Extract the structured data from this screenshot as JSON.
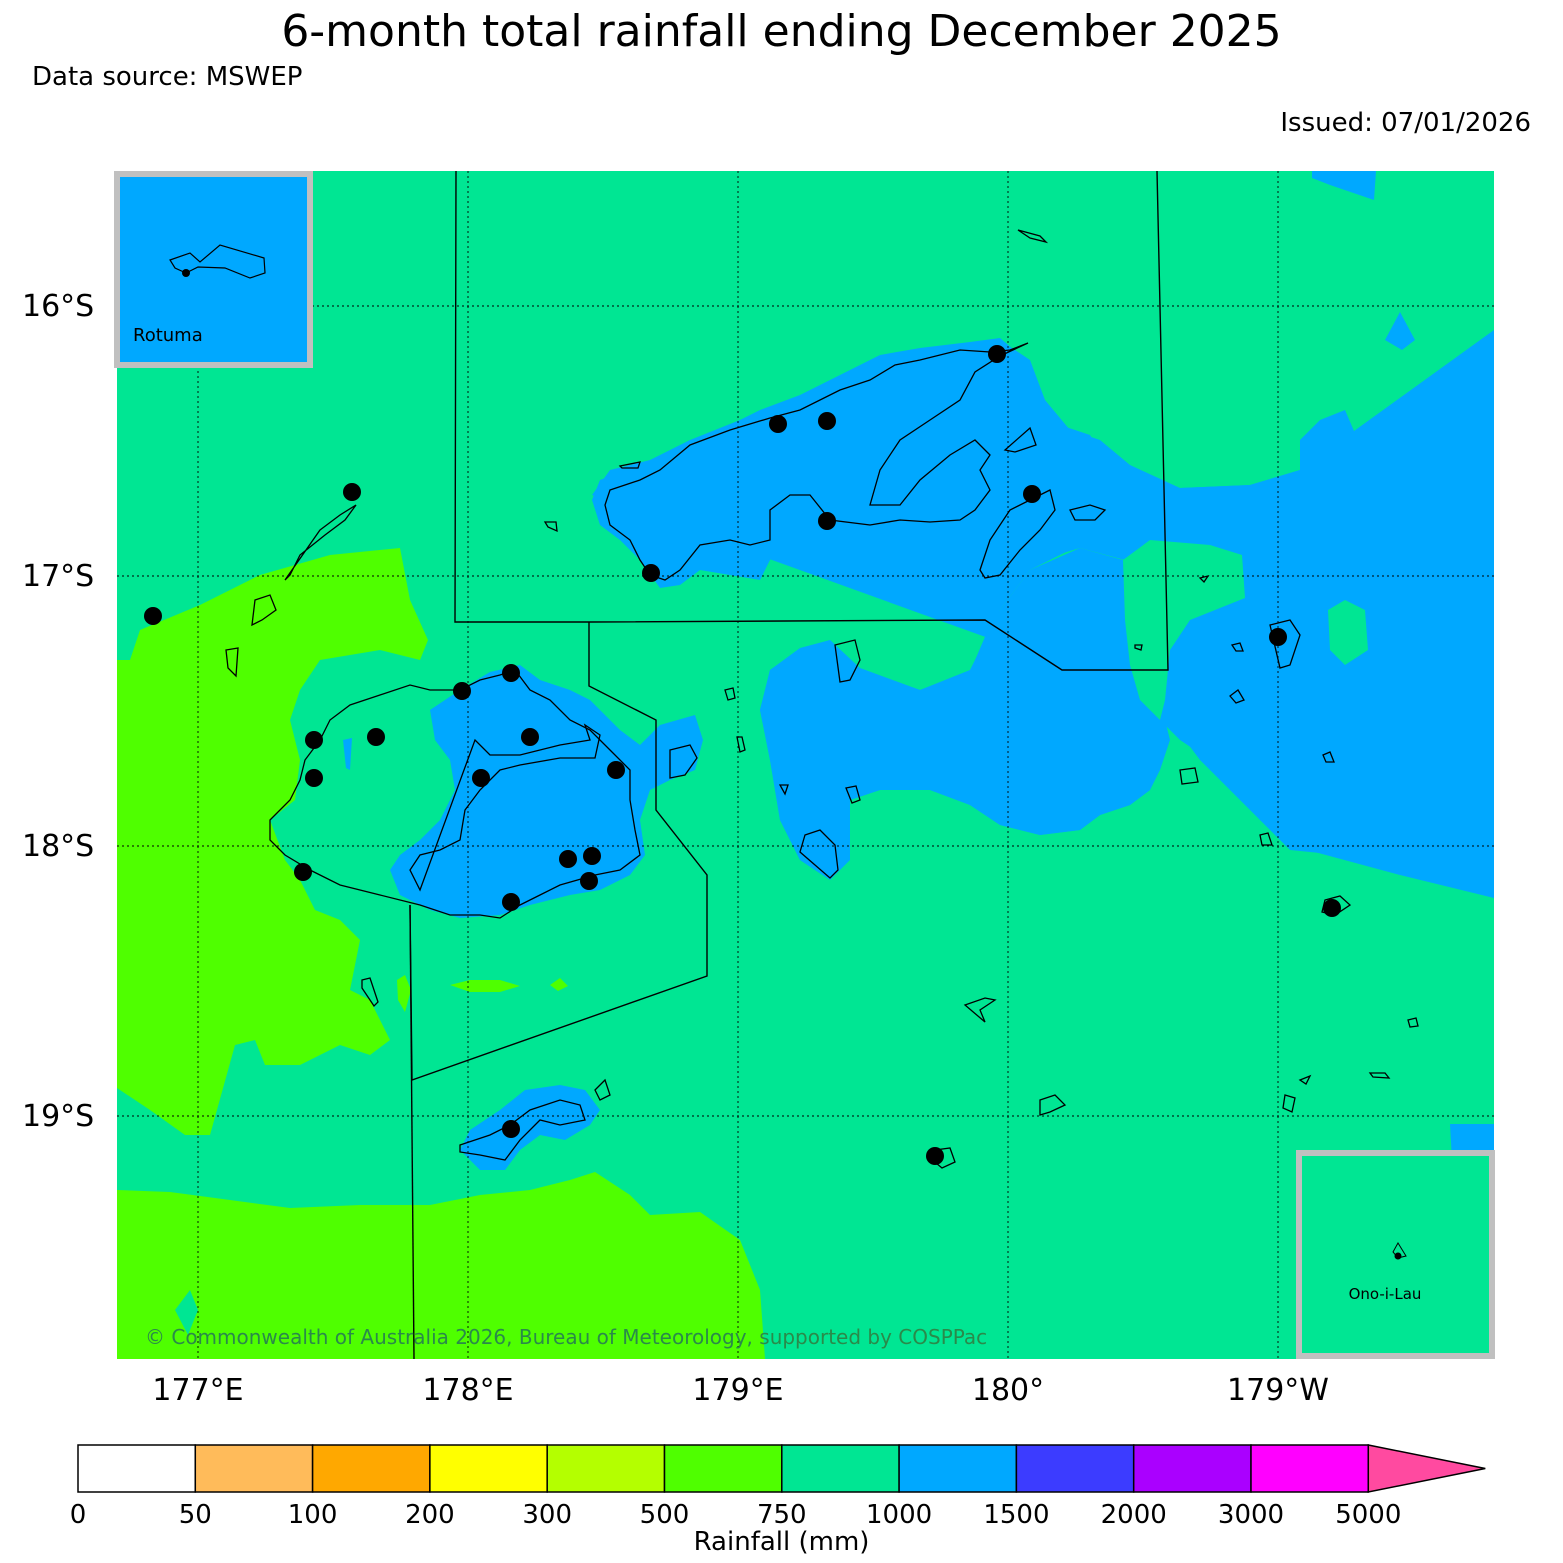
{
  "header": {
    "title": "6-month total rainfall ending December 2025",
    "data_source": "Data source: MSWEP",
    "issued": "Issued: 07/01/2026"
  },
  "map": {
    "lat_labels": [
      "16°S",
      "17°S",
      "18°S",
      "19°S"
    ],
    "lon_labels": [
      "177°E",
      "178°E",
      "179°E",
      "180°",
      "179°W"
    ],
    "copyright": "© Commonwealth of Australia 2026, Bureau of Meteorology, supported by COSPPac",
    "inset_rotuma": "Rotuma",
    "inset_ono": "Ono-i-Lau"
  },
  "legend": {
    "label": "Rainfall (mm)",
    "ticks": [
      "0",
      "50",
      "100",
      "200",
      "300",
      "500",
      "750",
      "1000",
      "1500",
      "2000",
      "3000",
      "5000"
    ],
    "colors": [
      "#ffffff",
      "#ffbb5a",
      "#ffa800",
      "#ffff00",
      "#b4ff00",
      "#4fff00",
      "#00e693",
      "#00a8ff",
      "#3c3cff",
      "#aa00ff",
      "#ff00ff",
      "#ff4aa0"
    ]
  },
  "colors": {
    "band_750_1000": "#00e693",
    "band_1000_1500": "#00a8ff",
    "band_500_750": "#4fff00",
    "inset_border": "#c0c0c0"
  }
}
